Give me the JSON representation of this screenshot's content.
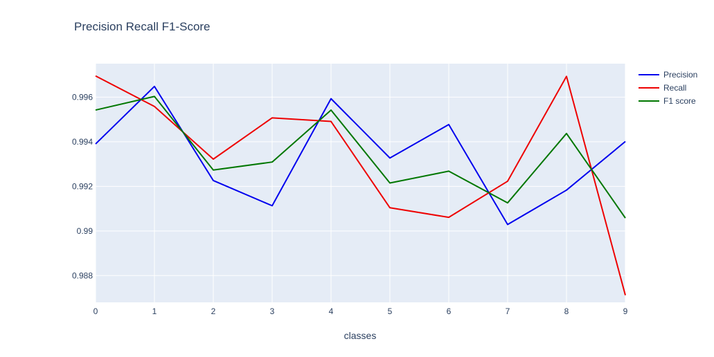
{
  "chart_data": {
    "type": "line",
    "title": "Precision Recall F1-Score",
    "xlabel": "classes",
    "ylabel": "",
    "x": [
      0,
      1,
      2,
      3,
      4,
      5,
      6,
      7,
      8,
      9
    ],
    "xlim": [
      0,
      9
    ],
    "ylim": [
      0.9868,
      0.9975
    ],
    "xticks": [
      0,
      1,
      2,
      3,
      4,
      5,
      6,
      7,
      8,
      9
    ],
    "yticks": [
      0.988,
      0.99,
      0.992,
      0.994,
      0.996
    ],
    "ytick_labels": [
      "0.988",
      "0.99",
      "0.992",
      "0.994",
      "0.996"
    ],
    "grid": true,
    "legend_position": "top-right",
    "plot_background": "#e5ecf6",
    "series": [
      {
        "name": "Precision",
        "color": "#0000ee",
        "values": [
          0.9939,
          0.99648,
          0.99226,
          0.99113,
          0.99593,
          0.99327,
          0.99477,
          0.99029,
          0.99183,
          0.99401
        ]
      },
      {
        "name": "Recall",
        "color": "#ee0000",
        "values": [
          0.99695,
          0.99558,
          0.99322,
          0.99507,
          0.99491,
          0.99104,
          0.99061,
          0.99223,
          0.99693,
          0.98712
        ]
      },
      {
        "name": "F1 score",
        "color": "#007700",
        "values": [
          0.99542,
          0.99603,
          0.99273,
          0.99309,
          0.99542,
          0.99215,
          0.99268,
          0.99126,
          0.99437,
          0.99058
        ]
      }
    ]
  }
}
